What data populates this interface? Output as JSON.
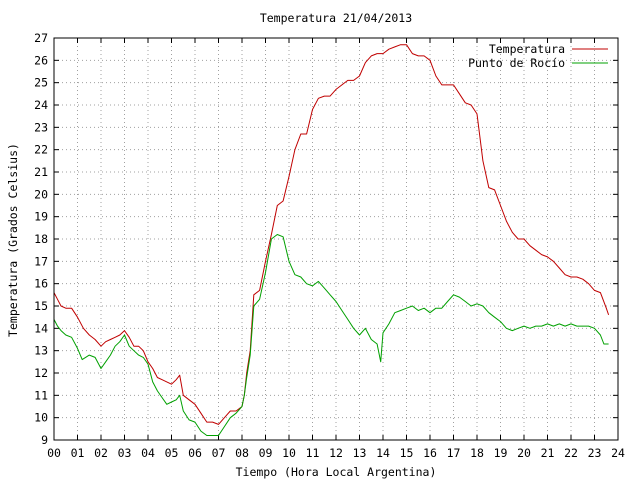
{
  "chart_data": {
    "type": "line",
    "title": "Temperatura 21/04/2013",
    "xlabel": "Tiempo (Hora Local Argentina)",
    "ylabel": "Temperatura (Grados Celsius)",
    "xlim": [
      0,
      24
    ],
    "ylim": [
      9,
      27
    ],
    "x_ticks": [
      "00",
      "01",
      "02",
      "03",
      "04",
      "05",
      "06",
      "07",
      "08",
      "09",
      "10",
      "11",
      "12",
      "13",
      "14",
      "15",
      "16",
      "17",
      "18",
      "19",
      "20",
      "21",
      "22",
      "23",
      "24"
    ],
    "y_ticks": [
      "9",
      "10",
      "11",
      "12",
      "13",
      "14",
      "15",
      "16",
      "17",
      "18",
      "19",
      "20",
      "21",
      "22",
      "23",
      "24",
      "25",
      "26",
      "27"
    ],
    "grid": true,
    "legend_position": "top-right",
    "series": [
      {
        "name": "Temperatura",
        "color": "#c00000",
        "x": [
          0.0,
          0.15,
          0.3,
          0.5,
          0.75,
          1.0,
          1.25,
          1.5,
          1.75,
          2.0,
          2.2,
          2.4,
          2.6,
          2.8,
          3.0,
          3.2,
          3.4,
          3.6,
          3.8,
          4.0,
          4.2,
          4.4,
          4.6,
          4.8,
          5.0,
          5.2,
          5.35,
          5.5,
          5.75,
          6.0,
          6.25,
          6.5,
          6.75,
          7.0,
          7.25,
          7.5,
          7.75,
          8.0,
          8.1,
          8.2,
          8.35,
          8.5,
          8.75,
          9.0,
          9.25,
          9.5,
          9.75,
          10.0,
          10.25,
          10.5,
          10.75,
          11.0,
          11.25,
          11.5,
          11.75,
          12.0,
          12.25,
          12.5,
          12.75,
          13.0,
          13.25,
          13.5,
          13.75,
          14.0,
          14.25,
          14.5,
          14.75,
          15.0,
          15.25,
          15.5,
          15.75,
          16.0,
          16.25,
          16.5,
          16.75,
          17.0,
          17.25,
          17.5,
          17.75,
          18.0,
          18.25,
          18.5,
          18.75,
          19.0,
          19.25,
          19.5,
          19.75,
          20.0,
          20.25,
          20.5,
          20.75,
          21.0,
          21.25,
          21.5,
          21.75,
          22.0,
          22.25,
          22.5,
          22.75,
          23.0,
          23.25,
          23.5,
          23.6
        ],
        "values": [
          15.6,
          15.3,
          15.0,
          14.9,
          14.9,
          14.5,
          14.0,
          13.7,
          13.5,
          13.2,
          13.4,
          13.5,
          13.6,
          13.7,
          13.9,
          13.6,
          13.2,
          13.2,
          13.0,
          12.5,
          12.2,
          11.8,
          11.7,
          11.6,
          11.5,
          11.7,
          11.9,
          11.0,
          10.8,
          10.6,
          10.2,
          9.8,
          9.8,
          9.7,
          10.0,
          10.3,
          10.3,
          10.5,
          11.0,
          12.0,
          13.0,
          15.5,
          15.7,
          17.0,
          18.2,
          19.5,
          19.7,
          20.8,
          22.0,
          22.7,
          22.7,
          23.8,
          24.3,
          24.4,
          24.4,
          24.7,
          24.9,
          25.1,
          25.1,
          25.3,
          25.9,
          26.2,
          26.3,
          26.3,
          26.5,
          26.6,
          26.7,
          26.7,
          26.3,
          26.2,
          26.2,
          26.0,
          25.3,
          24.9,
          24.9,
          24.9,
          24.5,
          24.1,
          24.0,
          23.6,
          21.5,
          20.3,
          20.2,
          19.5,
          18.8,
          18.3,
          18.0,
          18.0,
          17.7,
          17.5,
          17.3,
          17.2,
          17.0,
          16.7,
          16.4,
          16.3,
          16.3,
          16.2,
          16.0,
          15.7,
          15.6,
          14.9,
          14.6
        ]
      },
      {
        "name": "Punto de Rocío",
        "color": "#00a000",
        "x": [
          0.0,
          0.15,
          0.3,
          0.5,
          0.75,
          1.0,
          1.2,
          1.5,
          1.75,
          2.0,
          2.2,
          2.4,
          2.6,
          2.8,
          3.0,
          3.2,
          3.4,
          3.6,
          3.8,
          4.0,
          4.2,
          4.4,
          4.6,
          4.8,
          5.0,
          5.2,
          5.35,
          5.5,
          5.75,
          6.0,
          6.25,
          6.5,
          6.75,
          7.0,
          7.25,
          7.5,
          7.75,
          8.0,
          8.1,
          8.2,
          8.35,
          8.5,
          8.75,
          9.0,
          9.25,
          9.5,
          9.75,
          10.0,
          10.25,
          10.5,
          10.75,
          11.0,
          11.25,
          11.5,
          11.75,
          12.0,
          12.25,
          12.5,
          12.75,
          13.0,
          13.25,
          13.5,
          13.75,
          13.9,
          14.0,
          14.25,
          14.5,
          14.75,
          15.0,
          15.25,
          15.5,
          15.75,
          16.0,
          16.25,
          16.5,
          16.75,
          17.0,
          17.25,
          17.5,
          17.75,
          18.0,
          18.25,
          18.5,
          18.75,
          19.0,
          19.25,
          19.5,
          19.75,
          20.0,
          20.25,
          20.5,
          20.75,
          21.0,
          21.25,
          21.5,
          21.75,
          22.0,
          22.25,
          22.5,
          22.75,
          23.0,
          23.25,
          23.4,
          23.6
        ],
        "values": [
          14.4,
          14.1,
          13.9,
          13.7,
          13.6,
          13.1,
          12.6,
          12.8,
          12.7,
          12.2,
          12.5,
          12.8,
          13.2,
          13.4,
          13.7,
          13.2,
          13.0,
          12.8,
          12.7,
          12.4,
          11.6,
          11.2,
          10.9,
          10.6,
          10.7,
          10.8,
          11.0,
          10.3,
          9.9,
          9.8,
          9.4,
          9.2,
          9.2,
          9.2,
          9.6,
          10.0,
          10.2,
          10.5,
          11.0,
          11.8,
          12.8,
          15.0,
          15.3,
          16.5,
          18.0,
          18.2,
          18.1,
          17.0,
          16.4,
          16.3,
          16.0,
          15.9,
          16.1,
          15.8,
          15.5,
          15.2,
          14.8,
          14.4,
          14.0,
          13.7,
          14.0,
          13.5,
          13.3,
          12.5,
          13.8,
          14.2,
          14.7,
          14.8,
          14.9,
          15.0,
          14.8,
          14.9,
          14.7,
          14.9,
          14.9,
          15.2,
          15.5,
          15.4,
          15.2,
          15.0,
          15.1,
          15.0,
          14.7,
          14.5,
          14.3,
          14.0,
          13.9,
          14.0,
          14.1,
          14.0,
          14.1,
          14.1,
          14.2,
          14.1,
          14.2,
          14.1,
          14.2,
          14.1,
          14.1,
          14.1,
          14.0,
          13.7,
          13.3,
          13.3
        ]
      }
    ]
  }
}
